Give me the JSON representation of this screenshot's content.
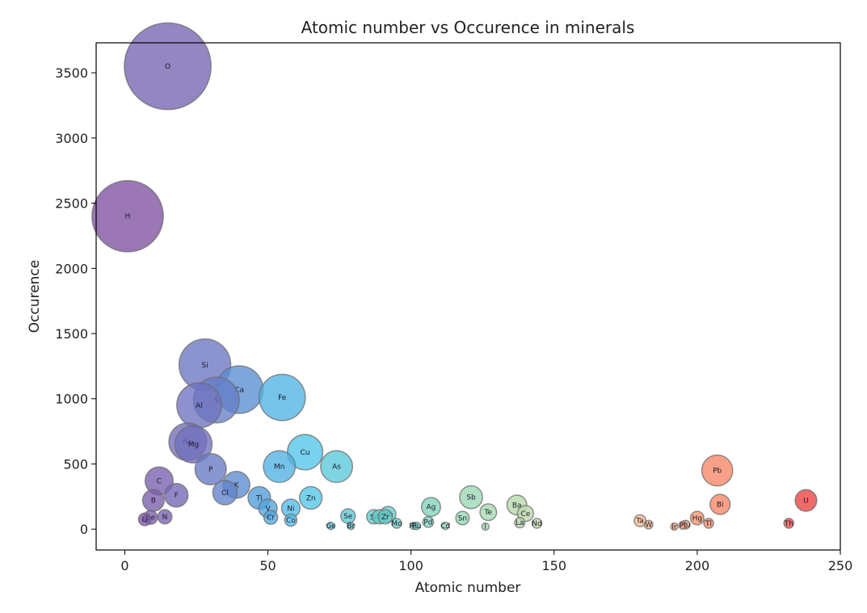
{
  "chart_data": {
    "type": "scatter",
    "title": "Atomic number vs Occurence in minerals",
    "xlabel": "Atomic number",
    "ylabel": "Occurence",
    "xlim": [
      -10,
      250
    ],
    "ylim": [
      -160,
      3730
    ],
    "xticks": [
      0,
      50,
      100,
      150,
      200,
      250
    ],
    "yticks": [
      0,
      500,
      1000,
      1500,
      2000,
      2500,
      3000,
      3500
    ],
    "bubble_size_encodes": "y",
    "colormap": "rainbow-by-x",
    "grid": false,
    "points": [
      {
        "label": "H",
        "x": 1,
        "y": 2400
      },
      {
        "label": "O",
        "x": 15,
        "y": 3550
      },
      {
        "label": "Li",
        "x": 7,
        "y": 75
      },
      {
        "label": "Be",
        "x": 9,
        "y": 90
      },
      {
        "label": "B",
        "x": 10,
        "y": 220
      },
      {
        "label": "C",
        "x": 12,
        "y": 370
      },
      {
        "label": "N",
        "x": 14,
        "y": 95
      },
      {
        "label": "F",
        "x": 18,
        "y": 260
      },
      {
        "label": "Na",
        "x": 22,
        "y": 670
      },
      {
        "label": "Mg",
        "x": 24,
        "y": 650
      },
      {
        "label": "Al",
        "x": 26,
        "y": 950
      },
      {
        "label": "Si",
        "x": 28,
        "y": 1260
      },
      {
        "label": "P",
        "x": 30,
        "y": 460
      },
      {
        "label": "S",
        "x": 32,
        "y": 990
      },
      {
        "label": "Cl",
        "x": 35,
        "y": 280
      },
      {
        "label": "K",
        "x": 39,
        "y": 340
      },
      {
        "label": "Ca",
        "x": 40,
        "y": 1070
      },
      {
        "label": "Ti",
        "x": 47,
        "y": 240
      },
      {
        "label": "V",
        "x": 50,
        "y": 160
      },
      {
        "label": "Cr",
        "x": 51,
        "y": 90
      },
      {
        "label": "Mn",
        "x": 54,
        "y": 480
      },
      {
        "label": "Fe",
        "x": 55,
        "y": 1010
      },
      {
        "label": "Ni",
        "x": 58,
        "y": 160
      },
      {
        "label": "Co",
        "x": 58,
        "y": 70
      },
      {
        "label": "Cu",
        "x": 63,
        "y": 590
      },
      {
        "label": "Zn",
        "x": 65,
        "y": 240
      },
      {
        "label": "As",
        "x": 74,
        "y": 480
      },
      {
        "label": "Ge",
        "x": 72,
        "y": 25
      },
      {
        "label": "Se",
        "x": 78,
        "y": 100
      },
      {
        "label": "Br",
        "x": 79,
        "y": 25
      },
      {
        "label": "Sr",
        "x": 87,
        "y": 95
      },
      {
        "label": "Y",
        "x": 89,
        "y": 95
      },
      {
        "label": "Zr",
        "x": 91,
        "y": 95
      },
      {
        "label": "Nb",
        "x": 92,
        "y": 115
      },
      {
        "label": "Mo",
        "x": 95,
        "y": 45
      },
      {
        "label": "Rh",
        "x": 101,
        "y": 25
      },
      {
        "label": "Ru",
        "x": 102,
        "y": 25
      },
      {
        "label": "Pd",
        "x": 106,
        "y": 55
      },
      {
        "label": "Ag",
        "x": 107,
        "y": 170
      },
      {
        "label": "Cd",
        "x": 112,
        "y": 25
      },
      {
        "label": "Sn",
        "x": 118,
        "y": 85
      },
      {
        "label": "Sb",
        "x": 121,
        "y": 245
      },
      {
        "label": "Te",
        "x": 127,
        "y": 130
      },
      {
        "label": "I",
        "x": 126,
        "y": 20
      },
      {
        "label": "Ba",
        "x": 137,
        "y": 185
      },
      {
        "label": "La",
        "x": 138,
        "y": 50
      },
      {
        "label": "Ce",
        "x": 140,
        "y": 120
      },
      {
        "label": "Nd",
        "x": 144,
        "y": 45
      },
      {
        "label": "Ta",
        "x": 180,
        "y": 65
      },
      {
        "label": "W",
        "x": 183,
        "y": 35
      },
      {
        "label": "Ir",
        "x": 192,
        "y": 20
      },
      {
        "label": "Pt",
        "x": 195,
        "y": 30
      },
      {
        "label": "Au",
        "x": 196,
        "y": 35
      },
      {
        "label": "Hg",
        "x": 200,
        "y": 85
      },
      {
        "label": "Tl",
        "x": 204,
        "y": 45
      },
      {
        "label": "Pb",
        "x": 207,
        "y": 450
      },
      {
        "label": "Bi",
        "x": 208,
        "y": 190
      },
      {
        "label": "Th",
        "x": 232,
        "y": 45
      },
      {
        "label": "U",
        "x": 238,
        "y": 220
      }
    ]
  }
}
